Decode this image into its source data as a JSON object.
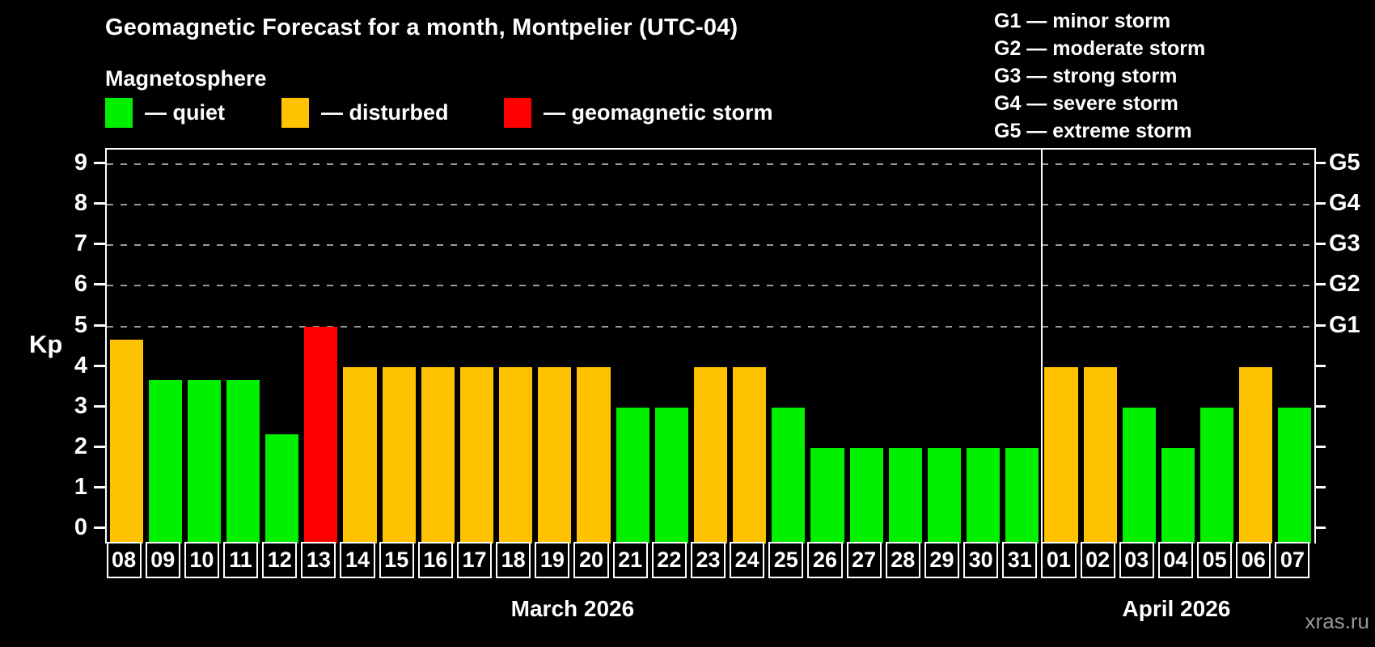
{
  "header": {
    "title": "Geomagnetic Forecast for a month, Montpelier (UTC-04)",
    "subtitle": "Magnetosphere"
  },
  "legend": {
    "items": [
      {
        "status": "quiet",
        "label": "— quiet"
      },
      {
        "status": "disturbed",
        "label": "— disturbed"
      },
      {
        "status": "storm",
        "label": "— geomagnetic storm"
      }
    ]
  },
  "g_legend": {
    "lines": [
      "G1 — minor storm",
      "G2 — moderate storm",
      "G3 — strong storm",
      "G4 — severe storm",
      "G5 — extreme storm"
    ]
  },
  "axes": {
    "y_label": "Kp",
    "y_ticks": [
      0,
      1,
      2,
      3,
      4,
      5,
      6,
      7,
      8,
      9
    ],
    "g_levels": [
      {
        "kp": 5,
        "label": "G1"
      },
      {
        "kp": 6,
        "label": "G2"
      },
      {
        "kp": 7,
        "label": "G3"
      },
      {
        "kp": 8,
        "label": "G4"
      },
      {
        "kp": 9,
        "label": "G5"
      }
    ]
  },
  "footer": {
    "watermark": "xras.ru"
  },
  "colors": {
    "quiet": "#00f000",
    "disturbed": "#ffc200",
    "storm": "#ff0000",
    "background": "#000000",
    "axis": "#ffffff",
    "grid": "#9a9a9a"
  },
  "chart_data": {
    "type": "bar",
    "title": "Geomagnetic Forecast for a month, Montpelier (UTC-04)",
    "ylabel": "Kp",
    "ylim": [
      0,
      9.4
    ],
    "grid_levels_kp": [
      5,
      6,
      7,
      8,
      9
    ],
    "legend_position": "top",
    "months": [
      {
        "label": "March 2026",
        "start_index": 0,
        "count": 24
      },
      {
        "label": "April 2026",
        "start_index": 24,
        "count": 7
      }
    ],
    "bars": [
      {
        "day": "08",
        "kp": 4.67,
        "status": "disturbed"
      },
      {
        "day": "09",
        "kp": 3.67,
        "status": "quiet"
      },
      {
        "day": "10",
        "kp": 3.67,
        "status": "quiet"
      },
      {
        "day": "11",
        "kp": 3.67,
        "status": "quiet"
      },
      {
        "day": "12",
        "kp": 2.33,
        "status": "quiet"
      },
      {
        "day": "13",
        "kp": 5.0,
        "status": "storm"
      },
      {
        "day": "14",
        "kp": 4.0,
        "status": "disturbed"
      },
      {
        "day": "15",
        "kp": 4.0,
        "status": "disturbed"
      },
      {
        "day": "16",
        "kp": 4.0,
        "status": "disturbed"
      },
      {
        "day": "17",
        "kp": 4.0,
        "status": "disturbed"
      },
      {
        "day": "18",
        "kp": 4.0,
        "status": "disturbed"
      },
      {
        "day": "19",
        "kp": 4.0,
        "status": "disturbed"
      },
      {
        "day": "20",
        "kp": 4.0,
        "status": "disturbed"
      },
      {
        "day": "21",
        "kp": 3.0,
        "status": "quiet"
      },
      {
        "day": "22",
        "kp": 3.0,
        "status": "quiet"
      },
      {
        "day": "23",
        "kp": 4.0,
        "status": "disturbed"
      },
      {
        "day": "24",
        "kp": 4.0,
        "status": "disturbed"
      },
      {
        "day": "25",
        "kp": 3.0,
        "status": "quiet"
      },
      {
        "day": "26",
        "kp": 2.0,
        "status": "quiet"
      },
      {
        "day": "27",
        "kp": 2.0,
        "status": "quiet"
      },
      {
        "day": "28",
        "kp": 2.0,
        "status": "quiet"
      },
      {
        "day": "29",
        "kp": 2.0,
        "status": "quiet"
      },
      {
        "day": "30",
        "kp": 2.0,
        "status": "quiet"
      },
      {
        "day": "31",
        "kp": 2.0,
        "status": "quiet"
      },
      {
        "day": "01",
        "kp": 4.0,
        "status": "disturbed"
      },
      {
        "day": "02",
        "kp": 4.0,
        "status": "disturbed"
      },
      {
        "day": "03",
        "kp": 3.0,
        "status": "quiet"
      },
      {
        "day": "04",
        "kp": 2.0,
        "status": "quiet"
      },
      {
        "day": "05",
        "kp": 3.0,
        "status": "quiet"
      },
      {
        "day": "06",
        "kp": 4.0,
        "status": "disturbed"
      },
      {
        "day": "07",
        "kp": 3.0,
        "status": "quiet"
      }
    ]
  }
}
